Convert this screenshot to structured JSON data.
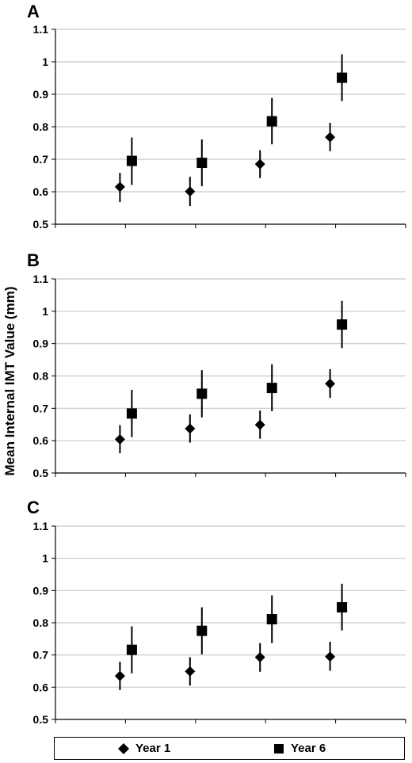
{
  "shared_ylabel": "Mean Internal IMT Value (mm)",
  "legend": {
    "items": [
      {
        "label": "Year 1",
        "marker": "diamond"
      },
      {
        "label": "Year 6",
        "marker": "square"
      }
    ]
  },
  "colors": {
    "marker": "#000000",
    "grid": "#c8c8c8",
    "axis": "#000000"
  },
  "chart_data": [
    {
      "type": "scatter",
      "panel_label": "A",
      "ylim": [
        0.5,
        1.1
      ],
      "yticks": [
        "0.5",
        "0.6",
        "0.7",
        "0.8",
        "0.9",
        "1",
        "1.1"
      ],
      "grid": true,
      "x_groups": 4,
      "series": [
        {
          "name": "Year 1",
          "marker": "diamond",
          "values": [
            0.615,
            0.601,
            0.685,
            0.768
          ],
          "err_low": [
            0.568,
            0.556,
            0.642,
            0.725
          ],
          "err_high": [
            0.658,
            0.646,
            0.728,
            0.812
          ]
        },
        {
          "name": "Year 6",
          "marker": "square",
          "values": [
            0.695,
            0.689,
            0.817,
            0.951
          ],
          "err_low": [
            0.621,
            0.617,
            0.746,
            0.879
          ],
          "err_high": [
            0.767,
            0.761,
            0.889,
            1.023
          ]
        }
      ]
    },
    {
      "type": "scatter",
      "panel_label": "B",
      "ylim": [
        0.5,
        1.1
      ],
      "yticks": [
        "0.5",
        "0.6",
        "0.7",
        "0.8",
        "0.9",
        "1",
        "1.1"
      ],
      "grid": true,
      "x_groups": 4,
      "series": [
        {
          "name": "Year 1",
          "marker": "diamond",
          "values": [
            0.604,
            0.637,
            0.649,
            0.776
          ],
          "err_low": [
            0.561,
            0.594,
            0.606,
            0.732
          ],
          "err_high": [
            0.648,
            0.681,
            0.693,
            0.821
          ]
        },
        {
          "name": "Year 6",
          "marker": "square",
          "values": [
            0.684,
            0.745,
            0.763,
            0.959
          ],
          "err_low": [
            0.611,
            0.672,
            0.691,
            0.886
          ],
          "err_high": [
            0.757,
            0.818,
            0.836,
            1.032
          ]
        }
      ]
    },
    {
      "type": "scatter",
      "panel_label": "C",
      "ylim": [
        0.5,
        1.1
      ],
      "yticks": [
        "0.5",
        "0.6",
        "0.7",
        "0.8",
        "0.9",
        "1",
        "1.1"
      ],
      "grid": true,
      "x_groups": 4,
      "series": [
        {
          "name": "Year 1",
          "marker": "diamond",
          "values": [
            0.635,
            0.649,
            0.693,
            0.695
          ],
          "err_low": [
            0.591,
            0.605,
            0.648,
            0.651
          ],
          "err_high": [
            0.679,
            0.693,
            0.737,
            0.741
          ]
        },
        {
          "name": "Year 6",
          "marker": "square",
          "values": [
            0.716,
            0.775,
            0.811,
            0.848
          ],
          "err_low": [
            0.643,
            0.702,
            0.737,
            0.776
          ],
          "err_high": [
            0.789,
            0.848,
            0.885,
            0.921
          ]
        }
      ]
    }
  ]
}
